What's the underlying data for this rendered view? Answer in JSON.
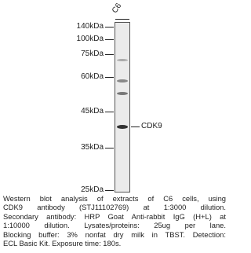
{
  "lane_label": "C6",
  "markers": [
    "140kDa",
    "100kDa",
    "75kDa",
    "60kDa",
    "45kDa",
    "35kDa",
    "25kDa"
  ],
  "band_label": "CDK9",
  "caption": [
    "Western blot analysis of extracts of C6 cells, using",
    "CDK9 antibody (STJ11102769) at 1:3000 dilution.",
    "Secondary antibody: HRP Goat Anti-rabbit IgG (H+L) at",
    "1:10000 dilution. Lysates/proteins: 25ug per lane.",
    "Blocking buffer: 3% nonfat dry milk in TBST. Detection:",
    "ECL Basic Kit. Exposure time: 180s."
  ]
}
